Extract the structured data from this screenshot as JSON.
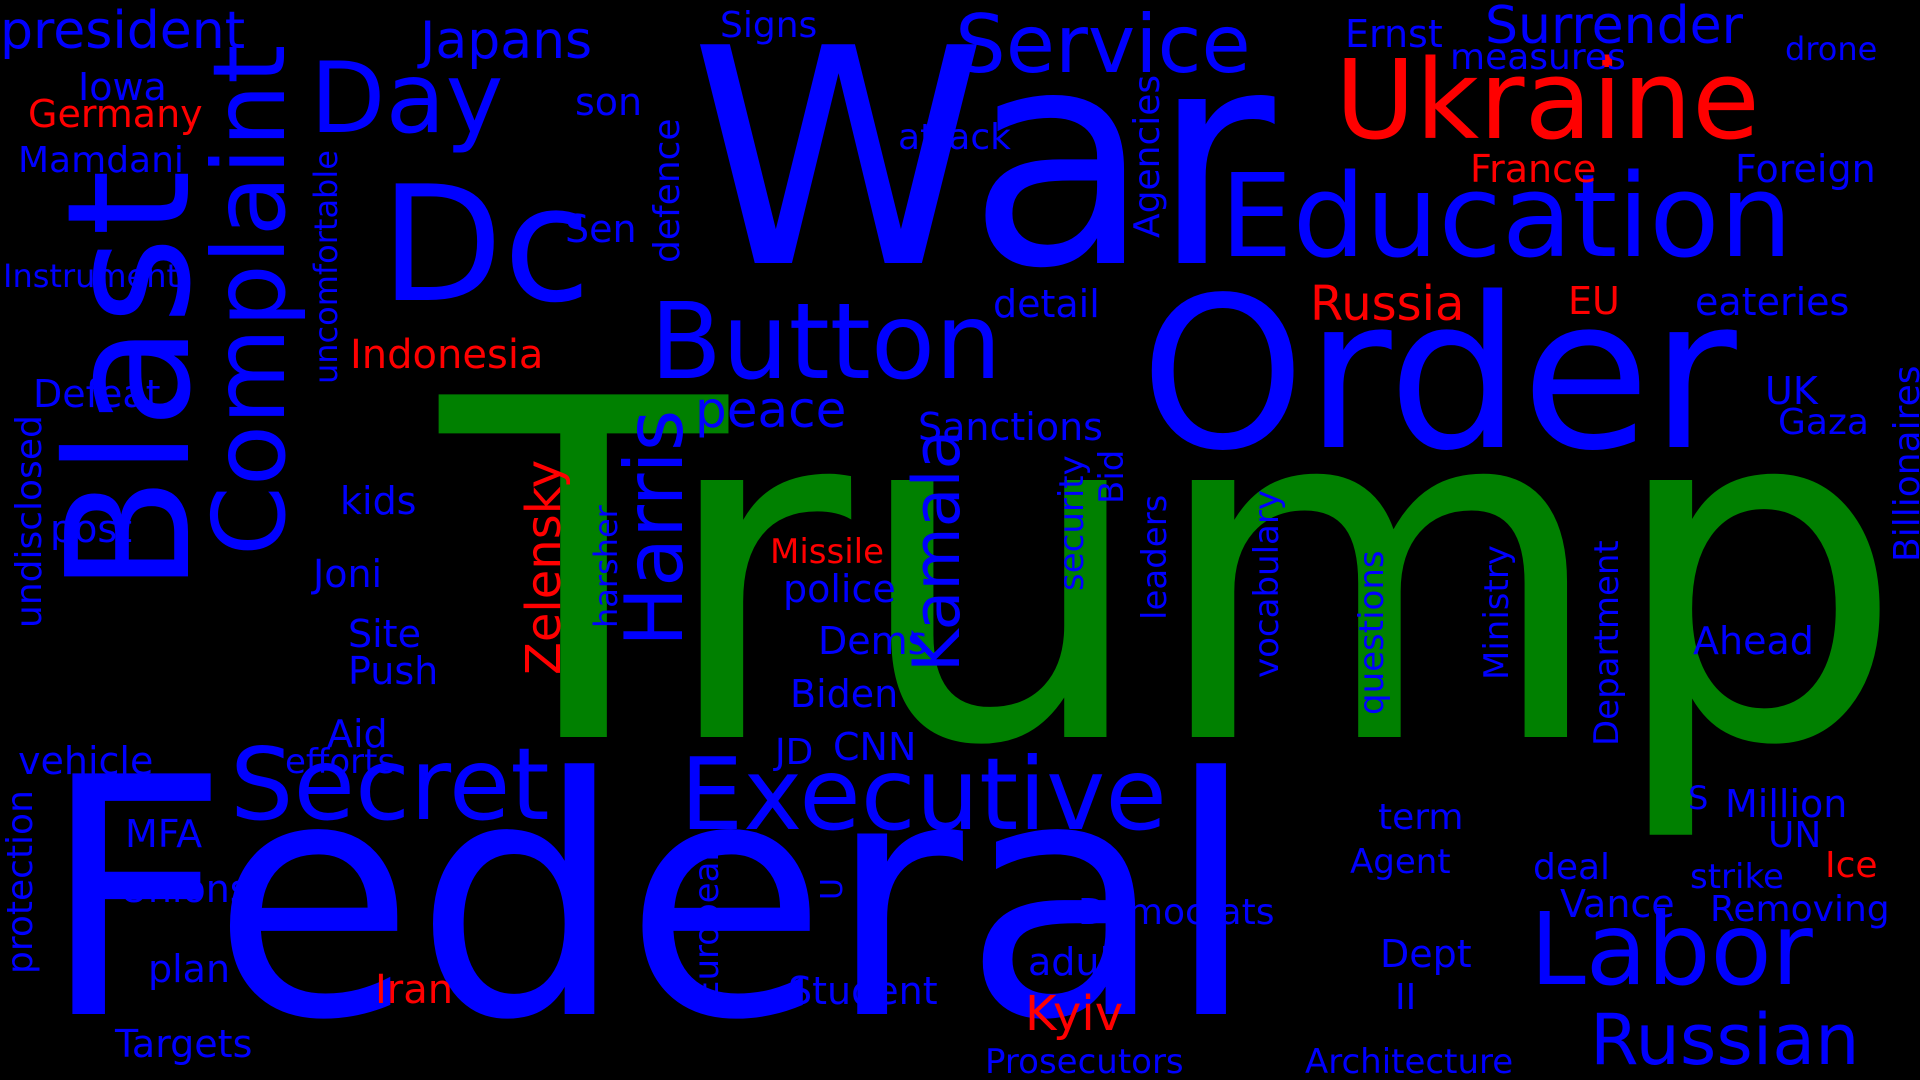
{
  "colors": {
    "background": "#000000",
    "blue": "#0000ff",
    "red": "#ff0000",
    "green": "#008000"
  },
  "words": [
    {
      "t": "Trump",
      "c": "green"
    },
    {
      "t": "Federal",
      "c": "blue"
    },
    {
      "t": "War",
      "c": "blue"
    },
    {
      "t": "Order",
      "c": "blue"
    },
    {
      "t": "Dc",
      "c": "blue"
    },
    {
      "t": "Blast",
      "c": "blue"
    },
    {
      "t": "Education",
      "c": "blue"
    },
    {
      "t": "Ukraine",
      "c": "red"
    },
    {
      "t": "Complaint",
      "c": "blue"
    },
    {
      "t": "Executive",
      "c": "blue"
    },
    {
      "t": "Button",
      "c": "blue"
    },
    {
      "t": "Secret",
      "c": "blue"
    },
    {
      "t": "Labor",
      "c": "blue"
    },
    {
      "t": "Day",
      "c": "blue"
    },
    {
      "t": "Service",
      "c": "blue"
    },
    {
      "t": "Harris",
      "c": "blue"
    },
    {
      "t": "Kamala",
      "c": "blue"
    },
    {
      "t": "Russian",
      "c": "blue"
    },
    {
      "t": "Surrender",
      "c": "blue"
    },
    {
      "t": "president",
      "c": "blue"
    },
    {
      "t": "Japans",
      "c": "blue"
    },
    {
      "t": "Russia",
      "c": "red"
    },
    {
      "t": "Zelensky",
      "c": "red"
    },
    {
      "t": "Kyiv",
      "c": "red"
    },
    {
      "t": "peace",
      "c": "blue"
    },
    {
      "t": "Indonesia",
      "c": "red"
    },
    {
      "t": "Germany",
      "c": "red"
    },
    {
      "t": "France",
      "c": "red"
    },
    {
      "t": "Iran",
      "c": "red"
    },
    {
      "t": "Missile",
      "c": "red"
    },
    {
      "t": "EU",
      "c": "red"
    },
    {
      "t": "Ice",
      "c": "red"
    },
    {
      "t": "Signs",
      "c": "blue"
    },
    {
      "t": "Ernst",
      "c": "blue"
    },
    {
      "t": "measures",
      "c": "blue"
    },
    {
      "t": "drone",
      "c": "blue"
    },
    {
      "t": "Iowa",
      "c": "blue"
    },
    {
      "t": "son",
      "c": "blue"
    },
    {
      "t": "Mamdani",
      "c": "blue"
    },
    {
      "t": "attack",
      "c": "blue"
    },
    {
      "t": "Foreign",
      "c": "blue"
    },
    {
      "t": "Agencies",
      "c": "blue"
    },
    {
      "t": "Sen",
      "c": "blue"
    },
    {
      "t": "defence",
      "c": "blue"
    },
    {
      "t": "Instrument",
      "c": "blue"
    },
    {
      "t": "uncomfortable",
      "c": "blue"
    },
    {
      "t": "detail",
      "c": "blue"
    },
    {
      "t": "eateries",
      "c": "blue"
    },
    {
      "t": "Defeat",
      "c": "blue"
    },
    {
      "t": "UK",
      "c": "blue"
    },
    {
      "t": "Gaza",
      "c": "blue"
    },
    {
      "t": "Sanctions",
      "c": "blue"
    },
    {
      "t": "Billionaires",
      "c": "blue"
    },
    {
      "t": "undisclosed",
      "c": "blue"
    },
    {
      "t": "kids",
      "c": "blue"
    },
    {
      "t": "post",
      "c": "blue"
    },
    {
      "t": "security",
      "c": "blue"
    },
    {
      "t": "Bid",
      "c": "blue"
    },
    {
      "t": "police",
      "c": "blue"
    },
    {
      "t": "Joni",
      "c": "blue"
    },
    {
      "t": "leaders",
      "c": "blue"
    },
    {
      "t": "vocabulary",
      "c": "blue"
    },
    {
      "t": "harsher",
      "c": "blue"
    },
    {
      "t": "Site",
      "c": "blue"
    },
    {
      "t": "Push",
      "c": "blue"
    },
    {
      "t": "Dems",
      "c": "blue"
    },
    {
      "t": "questions",
      "c": "blue"
    },
    {
      "t": "Ministry",
      "c": "blue"
    },
    {
      "t": "Department",
      "c": "blue"
    },
    {
      "t": "Ahead",
      "c": "blue"
    },
    {
      "t": "Biden",
      "c": "blue"
    },
    {
      "t": "Aid",
      "c": "blue"
    },
    {
      "t": "JD",
      "c": "blue"
    },
    {
      "t": "CNN",
      "c": "blue"
    },
    {
      "t": "vehicle",
      "c": "blue"
    },
    {
      "t": "efforts",
      "c": "blue"
    },
    {
      "t": "Million",
      "c": "blue"
    },
    {
      "t": "S",
      "c": "blue"
    },
    {
      "t": "term",
      "c": "blue"
    },
    {
      "t": "MFA",
      "c": "blue"
    },
    {
      "t": "UN",
      "c": "blue"
    },
    {
      "t": "protection",
      "c": "blue"
    },
    {
      "t": "U",
      "c": "blue"
    },
    {
      "t": "Agent",
      "c": "blue"
    },
    {
      "t": "deal",
      "c": "blue"
    },
    {
      "t": "strike",
      "c": "blue"
    },
    {
      "t": "Unions",
      "c": "blue"
    },
    {
      "t": "Vance",
      "c": "blue"
    },
    {
      "t": "Removing",
      "c": "blue"
    },
    {
      "t": "Democrats",
      "c": "blue"
    },
    {
      "t": "European",
      "c": "blue"
    },
    {
      "t": "plan",
      "c": "blue"
    },
    {
      "t": "adult",
      "c": "blue"
    },
    {
      "t": "Dept",
      "c": "blue"
    },
    {
      "t": "Student",
      "c": "blue"
    },
    {
      "t": "II",
      "c": "blue"
    },
    {
      "t": "Targets",
      "c": "blue"
    },
    {
      "t": "Prosecutors",
      "c": "blue"
    },
    {
      "t": "Architecture",
      "c": "blue"
    }
  ]
}
